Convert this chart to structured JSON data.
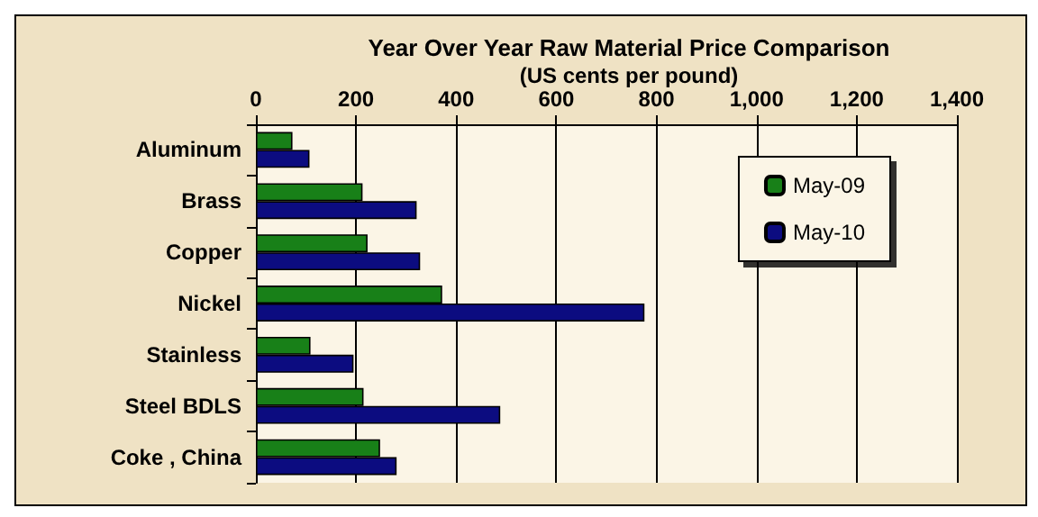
{
  "chart_data": {
    "type": "bar",
    "orientation": "horizontal",
    "title": "Year Over Year Raw Material Price Comparison",
    "subtitle": "(US cents per pound)",
    "categories": [
      "Aluminum",
      "Brass",
      "Copper",
      "Nickel",
      "Stainless",
      "Steel BDLS",
      "Coke , China"
    ],
    "series": [
      {
        "name": "May-09",
        "color": "#188018",
        "values": [
          73,
          213,
          223,
          372,
          109,
          215,
          248
        ]
      },
      {
        "name": "May-10",
        "color": "#0c0c80",
        "values": [
          107,
          321,
          328,
          776,
          195,
          488,
          281
        ]
      }
    ],
    "xlim": [
      0,
      1400
    ],
    "xticks": [
      0,
      {
        "value": 200,
        "label": "200"
      },
      {
        "value": 400,
        "label": "400"
      },
      {
        "value": 600,
        "label": "600"
      },
      {
        "value": 800,
        "label": "800"
      },
      {
        "value": 1000,
        "label": "1,000"
      },
      {
        "value": 1200,
        "label": "1,200"
      },
      {
        "value": 1400,
        "label": "1,400"
      }
    ],
    "grid": "x",
    "legend": "top right"
  }
}
